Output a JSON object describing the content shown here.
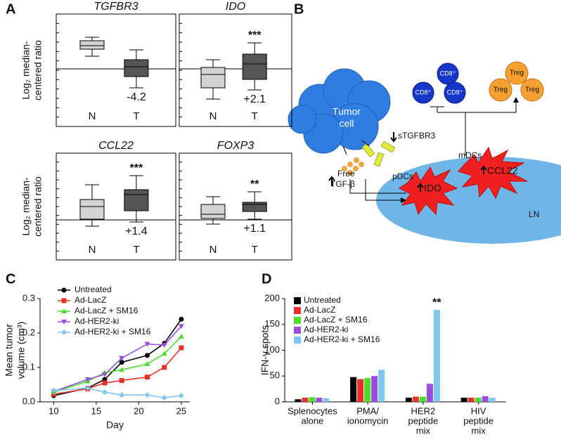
{
  "panel_labels": [
    "A",
    "B",
    "C",
    "D"
  ],
  "diagram": {
    "tumor": [
      "Tumor",
      "cell"
    ],
    "stgfbr3": "sTGFBR3",
    "free_tgfb": [
      "Free",
      "TGF-β"
    ],
    "pdcs": "pDCs",
    "mdcs": "mDCs",
    "ido": "IDO",
    "ccl22": "CCL22",
    "ln": "LN",
    "cd8": [
      "CD8⁺",
      "CD8⁺",
      "CD8⁺"
    ],
    "treg": [
      "Treg",
      "Treg",
      "Treg"
    ]
  },
  "chart_data": [
    {
      "type": "box",
      "title": "TGFBR3",
      "ylabel": [
        "Log₂ median-",
        "centered ratio"
      ],
      "categories": [
        "N",
        "T"
      ],
      "values": [
        [
          0.9,
          1.4,
          1.65,
          2.0,
          2.25
        ],
        [
          -1.35,
          -0.55,
          0.15,
          0.65,
          1.35
        ]
      ],
      "colors": [
        "#d3d3d3",
        "#555555"
      ],
      "annotation": "-4.2",
      "ylim": [
        -4.1,
        3.9
      ]
    },
    {
      "type": "box",
      "title": "IDO",
      "categories": [
        "N",
        "T"
      ],
      "values": [
        [
          -2.15,
          -1.35,
          -0.4,
          0.1,
          0.65
        ],
        [
          -1.5,
          -0.75,
          0.35,
          1.05,
          1.85
        ]
      ],
      "colors": [
        "#d3d3d3",
        "#555555"
      ],
      "annotation": "+2.1",
      "significance": "***",
      "ylim": [
        -4.1,
        3.9
      ]
    },
    {
      "type": "box",
      "title": "CCL22",
      "ylabel": [
        "Log₂ median-",
        "centered ratio"
      ],
      "categories": [
        "N",
        "T"
      ],
      "values": [
        [
          -0.45,
          0.05,
          0.95,
          1.45,
          2.5
        ],
        [
          -0.15,
          0.65,
          1.8,
          2.15,
          3.15
        ]
      ],
      "colors": [
        "#d3d3d3",
        "#555555"
      ],
      "annotation": "+1.4",
      "significance": "***",
      "ylim": [
        -2.85,
        4.75
      ]
    },
    {
      "type": "box",
      "title": "FOXP3",
      "categories": [
        "N",
        "T"
      ],
      "values": [
        [
          -0.3,
          0.1,
          0.4,
          1.1,
          1.65
        ],
        [
          0.05,
          0.6,
          1.1,
          1.25,
          2.0
        ]
      ],
      "colors": [
        "#d3d3d3",
        "#555555"
      ],
      "annotation": "+1.1",
      "significance": "**",
      "ylim": [
        -2.85,
        4.75
      ]
    },
    {
      "type": "line",
      "xlabel": "Day",
      "ylabel": [
        "Mean tumor",
        "volume (cm³)"
      ],
      "x": [
        10,
        14,
        16,
        18,
        21,
        23,
        25
      ],
      "series": [
        {
          "name": "Untreated",
          "color": "#000000",
          "marker": "circle",
          "values": [
            0.018,
            0.04,
            0.065,
            0.115,
            0.135,
            0.17,
            0.24
          ]
        },
        {
          "name": "Ad-LacZ",
          "color": "#e8302a",
          "marker": "square",
          "values": [
            0.022,
            0.038,
            0.055,
            0.062,
            0.072,
            0.1,
            0.157
          ]
        },
        {
          "name": "Ad-LacZ + SM16",
          "color": "#4ddd2a",
          "marker": "triangle-up",
          "values": [
            0.028,
            0.06,
            0.085,
            0.093,
            0.11,
            0.14,
            0.19
          ]
        },
        {
          "name": "Ad-HER2-ki",
          "color": "#9b4dde",
          "marker": "triangle-down",
          "values": [
            0.03,
            0.065,
            0.08,
            0.127,
            0.168,
            0.165,
            0.22
          ]
        },
        {
          "name": "Ad-HER2-ki + SM16",
          "color": "#7ec8f0",
          "marker": "diamond",
          "values": [
            0.033,
            0.04,
            0.028,
            0.02,
            0.02,
            0.012,
            0.018
          ]
        }
      ],
      "xlim": [
        8.4,
        26
      ],
      "xticks": [
        10,
        15,
        20,
        25
      ],
      "ylim": [
        0,
        0.3
      ],
      "yticks": [
        {
          "value": 0,
          "label": "0.0"
        },
        0.1,
        0.2,
        0.3
      ]
    },
    {
      "type": "bar",
      "ylabel": "IFN-γ spots",
      "categories": [
        [
          "Splenocytes",
          "alone"
        ],
        [
          "PMA/",
          "ionomycin"
        ],
        [
          "HER2",
          "peptide",
          "mix"
        ],
        [
          "HIV",
          "peptide",
          "mix"
        ]
      ],
      "series": [
        {
          "name": "Untreated",
          "color": "#000000",
          "values": [
            5,
            48,
            8,
            8
          ]
        },
        {
          "name": "Ad-LacZ",
          "color": "#e8302a",
          "values": [
            8,
            44,
            10,
            8
          ]
        },
        {
          "name": "Ad-LacZ + SM16",
          "color": "#4ddd2a",
          "values": [
            9,
            46,
            10,
            8
          ]
        },
        {
          "name": "Ad-HER2-ki",
          "color": "#9b4dde",
          "values": [
            8,
            50,
            35,
            11
          ]
        },
        {
          "name": "Ad-HER2-ki + SM16",
          "color": "#7ec8f0",
          "values": [
            7,
            62,
            178,
            8
          ]
        }
      ],
      "annotation": "**",
      "ylim": [
        0,
        200
      ],
      "yticks": [
        0,
        50,
        100,
        150,
        200
      ]
    }
  ]
}
